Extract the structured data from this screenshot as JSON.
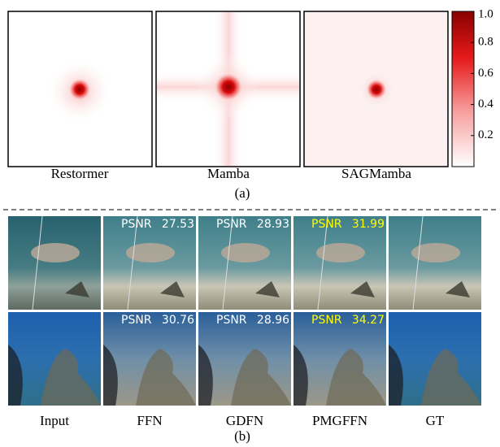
{
  "panel_a": {
    "heatmaps": [
      {
        "label": "Restormer"
      },
      {
        "label": "Mamba"
      },
      {
        "label": "SAGMamba"
      }
    ],
    "colorbar": {
      "ylim": [
        0,
        1
      ],
      "ticks": [
        {
          "value": 1,
          "label": "1.0"
        },
        0.8,
        0.6,
        0.4,
        0.2
      ]
    },
    "caption": "(a)"
  },
  "panel_b": {
    "columns": [
      {
        "label": "Input",
        "overlays": []
      },
      {
        "label": "FFN",
        "overlays": [
          {
            "metric": "PSNR",
            "value": 27.53,
            "color": "#ffffff"
          },
          {
            "metric": "PSNR",
            "value": 30.76,
            "color": "#ffffff"
          }
        ]
      },
      {
        "label": "GDFN",
        "overlays": [
          {
            "metric": "PSNR",
            "value": 28.93,
            "color": "#ffffff"
          },
          {
            "metric": "PSNR",
            "value": 28.96,
            "color": "#ffffff"
          }
        ]
      },
      {
        "label": "PMGFFN",
        "overlays": [
          {
            "metric": "PSNR",
            "value": 31.99,
            "color": "#ffff00"
          },
          {
            "metric": "PSNR",
            "value": 34.27,
            "color": "#ffff00"
          }
        ]
      },
      {
        "label": "GT",
        "overlays": []
      }
    ],
    "caption": "(b)"
  }
}
